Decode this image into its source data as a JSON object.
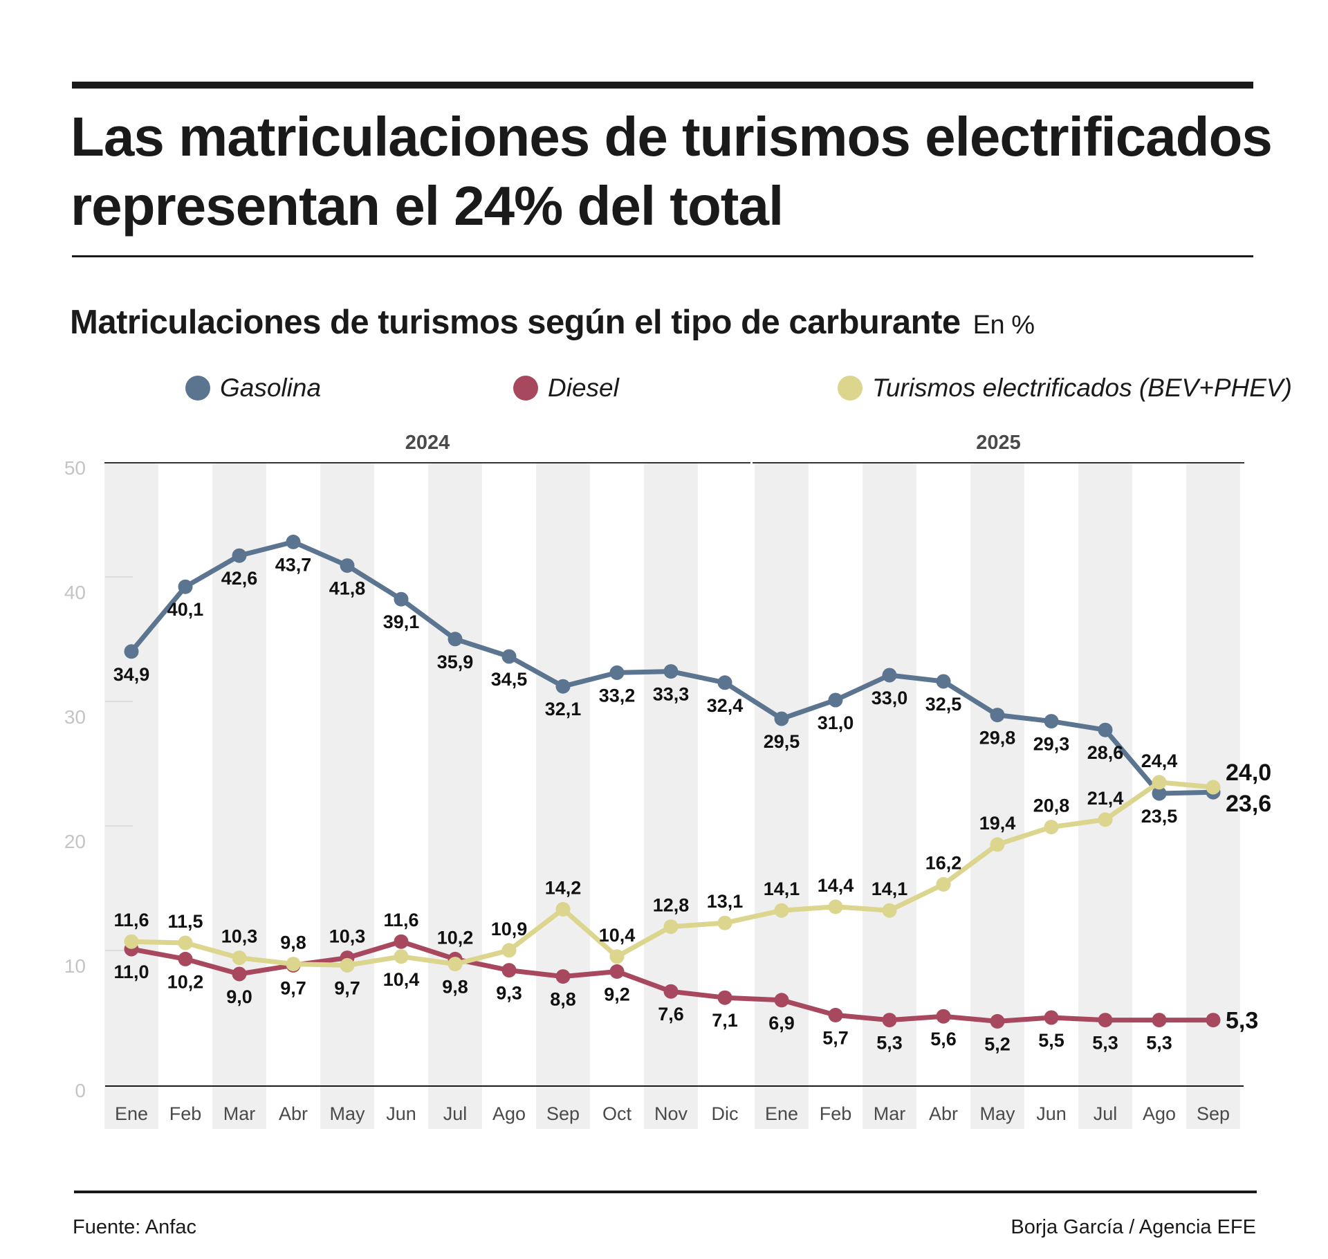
{
  "header": {
    "title": "Las matriculaciones de turismos electrificados representan el 24% del total",
    "subtitle": "Matriculaciones de turismos según el tipo de carburante",
    "unit": "En %"
  },
  "legend": [
    {
      "label": "Gasolina",
      "color": "#5b7590"
    },
    {
      "label": "Diesel",
      "color": "#a8485f"
    },
    {
      "label": "Turismos electrificados (BEV+PHEV)",
      "color": "#dcd58e"
    }
  ],
  "footer": {
    "source": "Fuente: Anfac",
    "credit": "Borja García / Agencia EFE"
  },
  "chart_data": {
    "type": "line",
    "title": "Matriculaciones de turismos según el tipo de carburante",
    "ylabel": "En %",
    "xlabel": "",
    "ylim": [
      0,
      50
    ],
    "yticks": [
      0,
      10,
      20,
      30,
      40,
      50
    ],
    "grid": false,
    "legend_position": "top",
    "year_groups": [
      {
        "label": "2024",
        "count": 12
      },
      {
        "label": "2025",
        "count": 9
      }
    ],
    "categories": [
      "Ene",
      "Feb",
      "Mar",
      "Abr",
      "May",
      "Jun",
      "Jul",
      "Ago",
      "Sep",
      "Oct",
      "Nov",
      "Dic",
      "Ene",
      "Feb",
      "Mar",
      "Abr",
      "May",
      "Jun",
      "Jul",
      "Ago",
      "Sep"
    ],
    "series": [
      {
        "name": "Gasolina",
        "color": "#5b7590",
        "values": [
          34.9,
          40.1,
          42.6,
          43.7,
          41.8,
          39.1,
          35.9,
          34.5,
          32.1,
          33.2,
          33.3,
          32.4,
          29.5,
          31.0,
          33.0,
          32.5,
          29.8,
          29.3,
          28.6,
          23.5,
          23.6
        ],
        "labels": [
          "34,9",
          "40,1",
          "42,6",
          "43,7",
          "41,8",
          "39,1",
          "35,9",
          "34,5",
          "32,1",
          "33,2",
          "33,3",
          "32,4",
          "29,5",
          "31,0",
          "33,0",
          "32,5",
          "29,8",
          "29,3",
          "28,6",
          "23,5",
          "23,6"
        ],
        "label_pos": [
          "below",
          "below",
          "below",
          "below",
          "below",
          "below",
          "below",
          "below",
          "below",
          "below",
          "below",
          "below",
          "below",
          "below",
          "below",
          "below",
          "below",
          "below",
          "below",
          "below",
          "right"
        ]
      },
      {
        "name": "Diesel",
        "color": "#a8485f",
        "values": [
          11.0,
          10.2,
          9.0,
          9.7,
          10.3,
          11.6,
          10.2,
          9.3,
          8.8,
          9.2,
          7.6,
          7.1,
          6.9,
          5.7,
          5.3,
          5.6,
          5.2,
          5.5,
          5.3,
          5.3,
          5.3
        ],
        "labels": [
          "11,0",
          "10,2",
          "9,0",
          "9,7",
          "10,3",
          "11,6",
          "10,2",
          "9,3",
          "8,8",
          "9,2",
          "7,6",
          "7,1",
          "6,9",
          "5,7",
          "5,3",
          "5,6",
          "5,2",
          "5,5",
          "5,3",
          "5,3",
          "5,3"
        ],
        "label_pos": [
          "below",
          "below",
          "below",
          "below",
          "above",
          "above",
          "above",
          "below",
          "below",
          "below",
          "below",
          "below",
          "below",
          "below",
          "below",
          "below",
          "below",
          "below",
          "below",
          "below",
          "right"
        ]
      },
      {
        "name": "Turismos electrificados (BEV+PHEV)",
        "color": "#dcd58e",
        "values": [
          11.6,
          11.5,
          10.3,
          9.8,
          9.7,
          10.4,
          9.8,
          10.9,
          14.2,
          10.4,
          12.8,
          13.1,
          14.1,
          14.4,
          14.1,
          16.2,
          19.4,
          20.8,
          21.4,
          24.4,
          24.0
        ],
        "labels": [
          "11,6",
          "11,5",
          "10,3",
          "9,8",
          "9,7",
          "10,4",
          "9,8",
          "10,9",
          "14,2",
          "10,4",
          "12,8",
          "13,1",
          "14,1",
          "14,4",
          "14,1",
          "16,2",
          "19,4",
          "20,8",
          "21,4",
          "24,4",
          "24,0"
        ],
        "label_pos": [
          "above",
          "above",
          "above",
          "above",
          "below",
          "below",
          "below",
          "above",
          "above",
          "above",
          "above",
          "above",
          "above",
          "above",
          "above",
          "above",
          "above",
          "above",
          "above",
          "above",
          "right"
        ]
      }
    ]
  }
}
